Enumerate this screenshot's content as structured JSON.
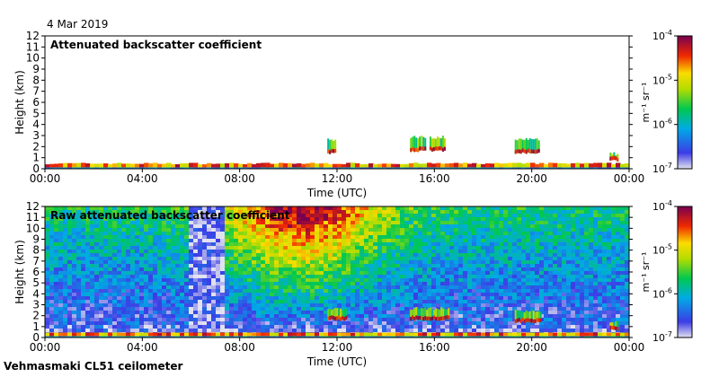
{
  "date": "4 Mar 2019",
  "footer": "Vehmasmaki CL51 ceilometer",
  "chart_data": [
    {
      "type": "heatmap",
      "title": "Attenuated backscatter coefficient",
      "xlabel": "Time (UTC)",
      "ylabel": "Height (km)",
      "x_ticks": [
        "00:00",
        "04:00",
        "08:00",
        "12:00",
        "16:00",
        "20:00",
        "00:00"
      ],
      "xlim_hours": [
        0,
        24
      ],
      "y_ticks": [
        0,
        1,
        2,
        3,
        4,
        5,
        6,
        7,
        8,
        9,
        10,
        11,
        12
      ],
      "ylim": [
        0,
        12
      ],
      "colorbar": {
        "label": "m⁻¹ sr⁻¹",
        "scale": "log",
        "range": [
          1e-07,
          0.0001
        ],
        "tick_labels": [
          "10-7",
          "10-6",
          "10-5",
          "10-4"
        ]
      },
      "features": [
        {
          "name": "boundary layer",
          "t_start": 0,
          "t_end": 24,
          "height_top_km": 0.4,
          "level": "high"
        },
        {
          "name": "cloud",
          "t_start": 11.6,
          "t_end": 11.9,
          "base_km": 1.3,
          "top_km": 2.8
        },
        {
          "name": "cloud",
          "t_start": 15.0,
          "t_end": 15.6,
          "base_km": 1.5,
          "top_km": 3.0
        },
        {
          "name": "cloud",
          "t_start": 15.8,
          "t_end": 16.4,
          "base_km": 1.5,
          "top_km": 3.0
        },
        {
          "name": "cloud",
          "t_start": 19.3,
          "t_end": 20.3,
          "base_km": 1.3,
          "top_km": 2.8
        },
        {
          "name": "cloud",
          "t_start": 23.2,
          "t_end": 23.5,
          "base_km": 0.6,
          "top_km": 1.5
        }
      ]
    },
    {
      "type": "heatmap",
      "title": "Raw attenuated backscatter coefficient",
      "xlabel": "Time (UTC)",
      "ylabel": "Height (km)",
      "x_ticks": [
        "00:00",
        "04:00",
        "08:00",
        "12:00",
        "16:00",
        "20:00",
        "00:00"
      ],
      "xlim_hours": [
        0,
        24
      ],
      "y_ticks": [
        0,
        1,
        2,
        3,
        4,
        5,
        6,
        7,
        8,
        9,
        10,
        11,
        12
      ],
      "ylim": [
        0,
        12
      ],
      "colorbar": {
        "label": "m⁻¹ sr⁻¹",
        "scale": "log",
        "range": [
          1e-07,
          0.0001
        ],
        "tick_labels": [
          "10-7",
          "10-6",
          "10-5",
          "10-4"
        ]
      },
      "features": [
        {
          "name": "noise field",
          "t_start": 0,
          "t_end": 24,
          "height_bottom_km": 2,
          "height_top_km": 12
        },
        {
          "name": "daytime noise maximum",
          "t_start": 7,
          "t_end": 14,
          "height_bottom_km": 4,
          "height_top_km": 12
        },
        {
          "name": "low-signal gap",
          "t_start": 5.8,
          "t_end": 7.2,
          "height_bottom_km": 0.5,
          "height_top_km": 12
        },
        {
          "name": "cloud",
          "t_start": 11.6,
          "t_end": 12.4,
          "base_km": 1.5,
          "top_km": 2.8
        },
        {
          "name": "cloud",
          "t_start": 15.0,
          "t_end": 16.6,
          "base_km": 1.5,
          "top_km": 2.8
        },
        {
          "name": "cloud",
          "t_start": 19.3,
          "t_end": 20.4,
          "base_km": 1.3,
          "top_km": 2.6
        },
        {
          "name": "cloud",
          "t_start": 23.2,
          "t_end": 23.5,
          "base_km": 0.6,
          "top_km": 1.5
        }
      ]
    }
  ]
}
